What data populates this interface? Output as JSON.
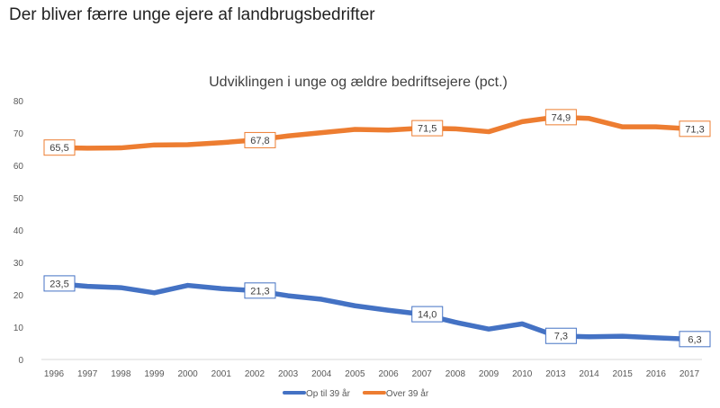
{
  "page": {
    "heading": "Der bliver færre unge ejere af landbrugsbedrifter"
  },
  "chart_data": {
    "type": "line",
    "title": "Udviklingen i unge og ældre bedriftsejere (pct.)",
    "xlabel": "",
    "ylabel": "",
    "categories": [
      "1996",
      "1997",
      "1998",
      "1999",
      "2000",
      "2001",
      "2002",
      "2003",
      "2004",
      "2005",
      "2006",
      "2007",
      "2008",
      "2009",
      "2010",
      "2013",
      "2014",
      "2015",
      "2016",
      "2017"
    ],
    "ylim": [
      0,
      80
    ],
    "yticks": [
      0,
      10,
      20,
      30,
      40,
      50,
      60,
      70,
      80
    ],
    "grid": false,
    "legend": "bottom",
    "series": [
      {
        "name": "Op til 39 år",
        "color": "#4472C4",
        "values": [
          23.5,
          22.6,
          22.2,
          20.6,
          22.9,
          21.9,
          21.3,
          19.7,
          18.6,
          16.6,
          15.2,
          14.0,
          11.5,
          9.4,
          11.0,
          7.3,
          7.0,
          7.2,
          6.7,
          6.3
        ],
        "labels": {
          "0": "23,5",
          "6": "21,3",
          "11": "14,0",
          "15": "7,3",
          "19": "6,3"
        }
      },
      {
        "name": "Over 39 år",
        "color": "#ED7D31",
        "values": [
          65.5,
          65.3,
          65.4,
          66.3,
          66.4,
          67.0,
          67.8,
          69.1,
          70.1,
          71.1,
          70.9,
          71.5,
          71.3,
          70.4,
          73.5,
          74.9,
          74.5,
          71.9,
          71.9,
          71.3
        ],
        "labels": {
          "0": "65,5",
          "6": "67,8",
          "11": "71,5",
          "15": "74,9",
          "19": "71,3"
        }
      }
    ]
  }
}
